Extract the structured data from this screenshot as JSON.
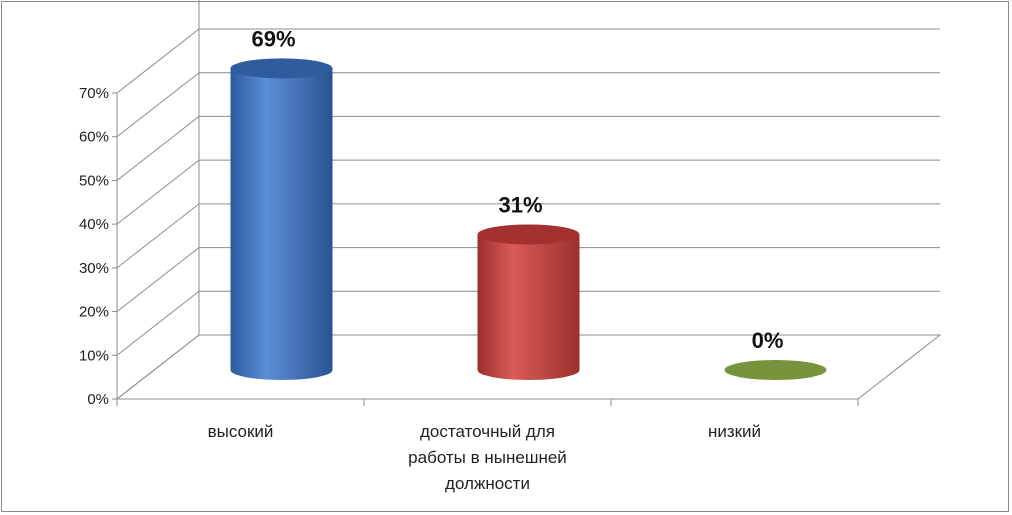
{
  "chart_data": {
    "type": "bar",
    "style": "3d-cylinder",
    "categories": [
      [
        "высокий"
      ],
      [
        "достаточный для",
        "работы в нынешней",
        "должности"
      ],
      [
        "низкий"
      ]
    ],
    "values": [
      69,
      31,
      0
    ],
    "data_labels": [
      "69%",
      "31%",
      "0%"
    ],
    "y_ticks": [
      "0%",
      "10%",
      "20%",
      "30%",
      "40%",
      "50%",
      "60%",
      "70%"
    ],
    "ylim": [
      0,
      70
    ],
    "grid": true,
    "legend": "none",
    "colors": [
      "#4a7fc8",
      "#c0504d",
      "#77933c"
    ]
  }
}
